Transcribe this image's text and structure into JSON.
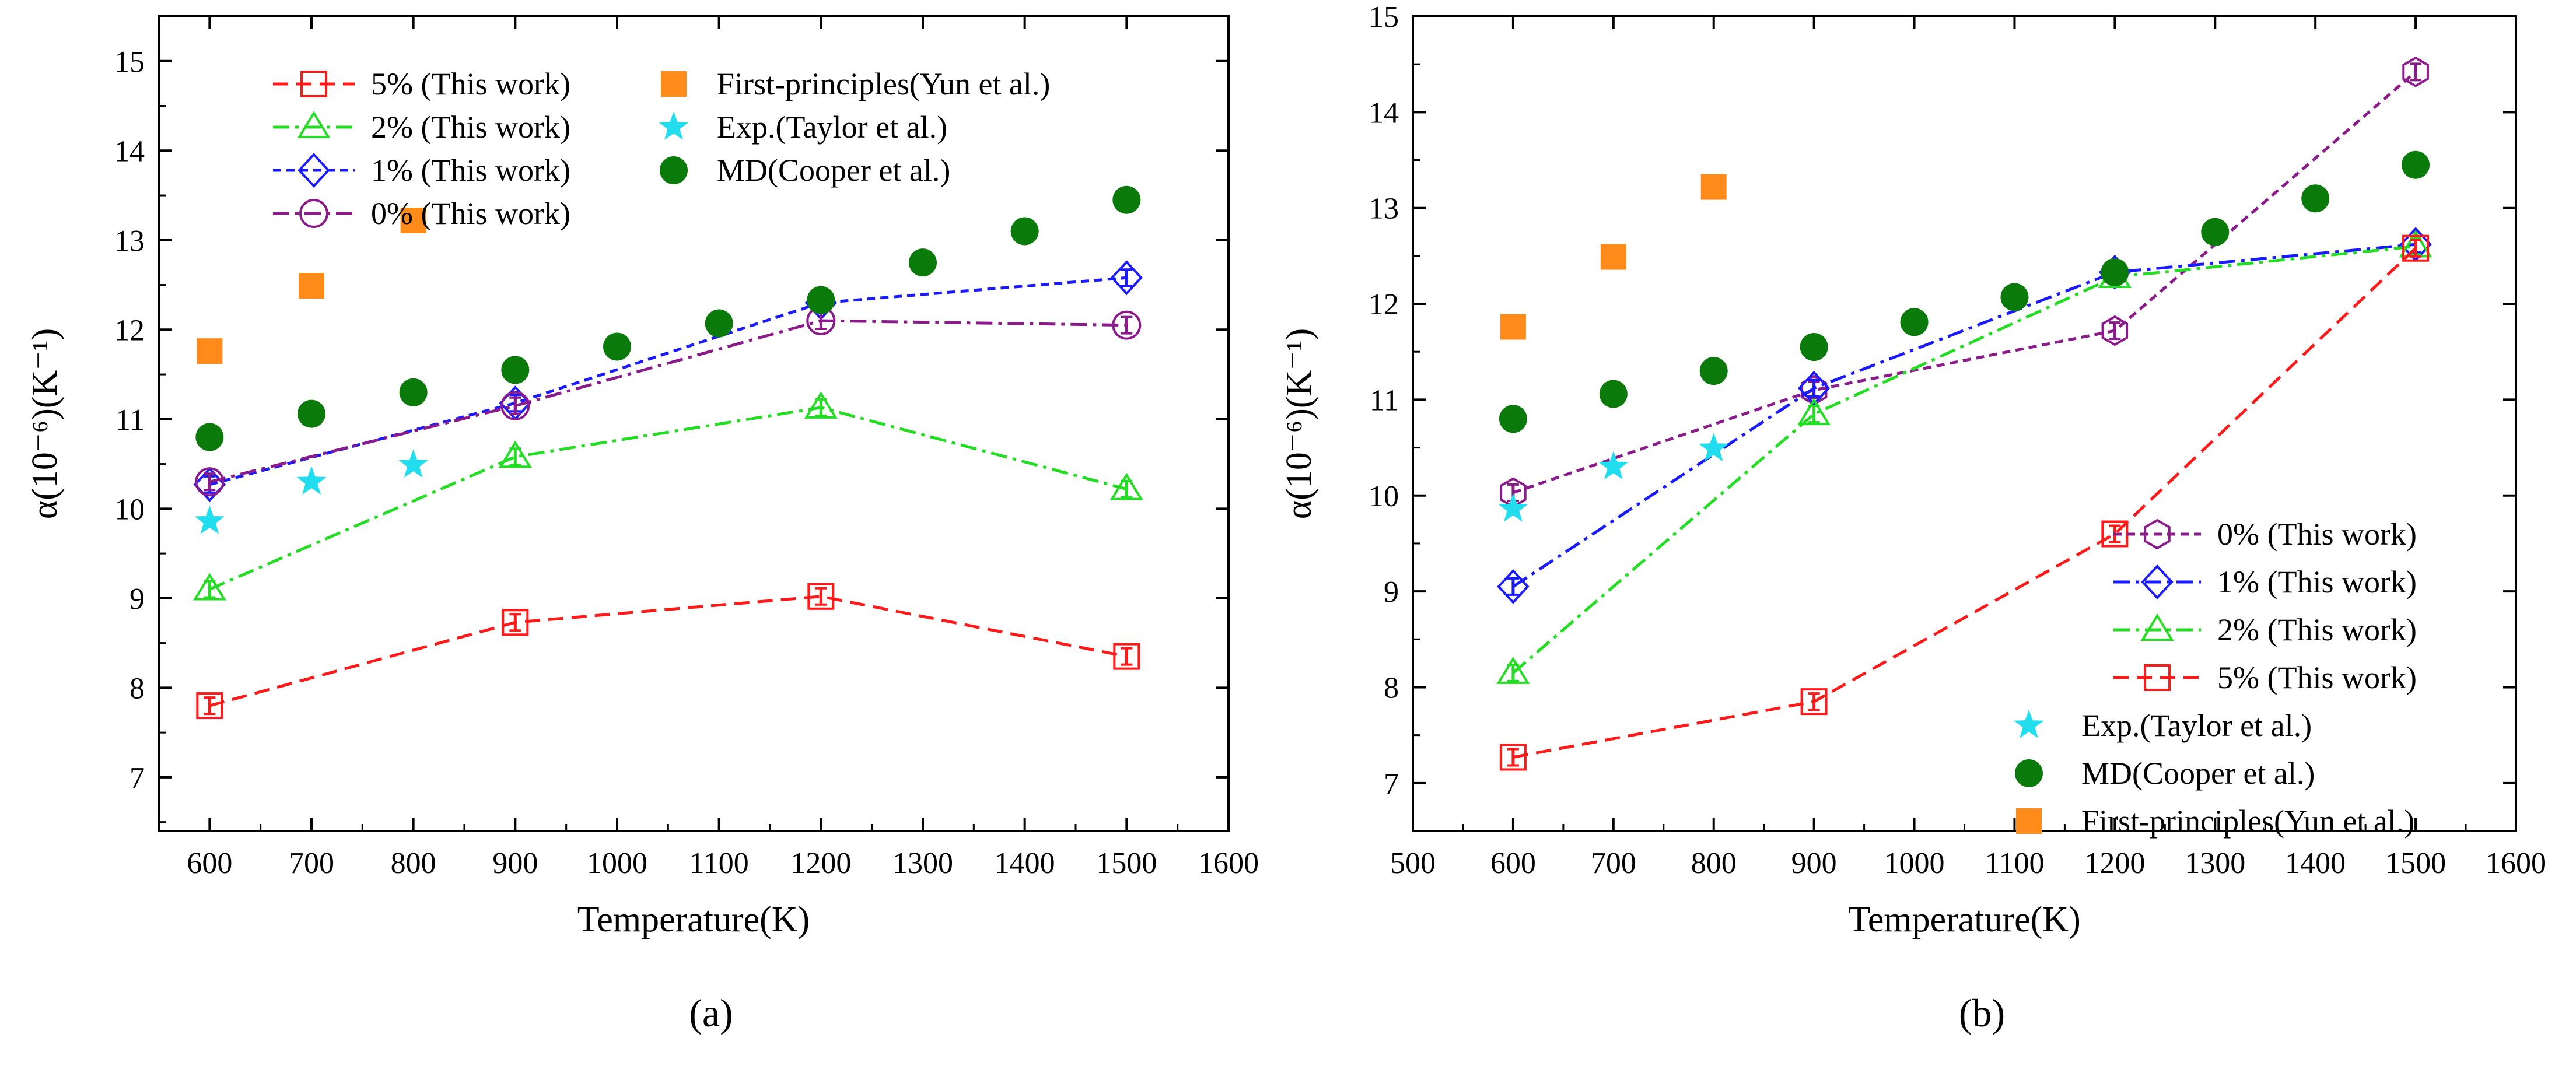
{
  "chart_data": [
    {
      "type": "line",
      "panel_label": "(a)",
      "xlabel": "Temperature(K)",
      "ylabel": "α(10⁻⁶)(K⁻¹)",
      "xlim": [
        550,
        1600
      ],
      "ylim": [
        6.4,
        15.5
      ],
      "xticks": [
        600,
        700,
        800,
        900,
        1000,
        1100,
        1200,
        1300,
        1400,
        1500,
        1600
      ],
      "yticks": [
        7,
        8,
        9,
        10,
        11,
        12,
        13,
        14,
        15
      ],
      "legend_placement": "top",
      "series": [
        {
          "name": "5% (This work)",
          "color": "#ff1a1a",
          "marker": "square-open",
          "dash": "dash",
          "error_bars": true,
          "x": [
            600,
            900,
            1200,
            1500
          ],
          "y": [
            7.8,
            8.73,
            9.02,
            8.35
          ]
        },
        {
          "name": "2% (This work)",
          "color": "#22dd22",
          "marker": "triangle-open",
          "dash": "dashdot",
          "error_bars": true,
          "x": [
            600,
            900,
            1200,
            1500
          ],
          "y": [
            9.1,
            10.58,
            11.13,
            10.22
          ]
        },
        {
          "name": "1% (This work)",
          "color": "#1a1aff",
          "marker": "diamond-open",
          "dash": "short-dash",
          "error_bars": true,
          "x": [
            600,
            900,
            1200,
            1500
          ],
          "y": [
            10.27,
            11.18,
            12.3,
            12.58
          ]
        },
        {
          "name": "0% (This work)",
          "color": "#8b1a8b",
          "marker": "circle-open",
          "dash": "dashdot",
          "error_bars": true,
          "x": [
            600,
            900,
            1200,
            1500
          ],
          "y": [
            10.3,
            11.15,
            12.1,
            12.05
          ]
        },
        {
          "name": "First-principles(Yun et al.)",
          "color": "#ff8c1a",
          "marker": "square-filled",
          "dash": "none",
          "x": [
            600,
            700,
            800
          ],
          "y": [
            11.76,
            12.49,
            13.22
          ]
        },
        {
          "name": "Exp.(Taylor et al.)",
          "color": "#22ddee",
          "marker": "star-filled",
          "dash": "none",
          "x": [
            600,
            700,
            800
          ],
          "y": [
            9.86,
            10.3,
            10.49
          ]
        },
        {
          "name": "MD(Cooper et al.)",
          "color": "#0a7a0a",
          "marker": "circle-filled",
          "dash": "none",
          "x": [
            600,
            700,
            800,
            900,
            1000,
            1100,
            1200,
            1300,
            1400,
            1500
          ],
          "y": [
            10.8,
            11.06,
            11.3,
            11.55,
            11.81,
            12.07,
            12.33,
            12.75,
            13.1,
            13.45
          ]
        }
      ],
      "legend_left": [
        "5% (This work)",
        "2% (This work)",
        "1% (This work)",
        "0% (This work)"
      ],
      "legend_right": [
        "First-principles(Yun et al.)",
        "Exp.(Taylor et al.)",
        "MD(Cooper et al.)"
      ]
    },
    {
      "type": "line",
      "panel_label": "(b)",
      "xlabel": "Temperature(K)",
      "ylabel": "α(10⁻⁶)(K⁻¹)",
      "xlim": [
        500,
        1600
      ],
      "ylim": [
        6.5,
        15
      ],
      "xticks": [
        500,
        600,
        700,
        800,
        900,
        1000,
        1100,
        1200,
        1300,
        1400,
        1500,
        1600
      ],
      "yticks": [
        7,
        8,
        9,
        10,
        11,
        12,
        13,
        14,
        15
      ],
      "legend_placement": "bottom-right",
      "series": [
        {
          "name": "0% (This work)",
          "color": "#8b1a8b",
          "marker": "hexagon-open",
          "dash": "short-dash",
          "error_bars": true,
          "x": [
            600,
            900,
            1200,
            1500
          ],
          "y": [
            10.03,
            11.1,
            11.72,
            14.42
          ]
        },
        {
          "name": "1% (This work)",
          "color": "#1a1aff",
          "marker": "diamond-open",
          "dash": "dashdot",
          "error_bars": true,
          "x": [
            600,
            900,
            1200,
            1500
          ],
          "y": [
            9.05,
            11.12,
            12.33,
            12.62
          ]
        },
        {
          "name": "2% (This work)",
          "color": "#22dd22",
          "marker": "triangle-open",
          "dash": "dashdot",
          "error_bars": true,
          "x": [
            600,
            900,
            1200,
            1500
          ],
          "y": [
            8.15,
            10.85,
            12.28,
            12.6
          ]
        },
        {
          "name": "5% (This work)",
          "color": "#ff1a1a",
          "marker": "square-open",
          "dash": "dash",
          "error_bars": true,
          "x": [
            600,
            900,
            1200,
            1500
          ],
          "y": [
            7.27,
            7.85,
            9.6,
            12.58
          ]
        },
        {
          "name": "Exp.(Taylor et al.)",
          "color": "#22ddee",
          "marker": "star-filled",
          "dash": "none",
          "x": [
            600,
            700,
            800
          ],
          "y": [
            9.86,
            10.3,
            10.49
          ]
        },
        {
          "name": "MD(Cooper et al.)",
          "color": "#0a7a0a",
          "marker": "circle-filled",
          "dash": "none",
          "x": [
            600,
            700,
            800,
            900,
            1000,
            1100,
            1200,
            1300,
            1400,
            1500
          ],
          "y": [
            10.8,
            11.06,
            11.3,
            11.55,
            11.81,
            12.07,
            12.33,
            12.75,
            13.1,
            13.45
          ]
        },
        {
          "name": "First-principles(Yun et al.)",
          "color": "#ff8c1a",
          "marker": "square-filled",
          "dash": "none",
          "x": [
            600,
            700,
            800
          ],
          "y": [
            11.76,
            12.49,
            13.22
          ]
        }
      ],
      "legend_order": [
        "0% (This work)",
        "1% (This work)",
        "2% (This work)",
        "5% (This work)",
        "Exp.(Taylor et al.)",
        "MD(Cooper et al.)",
        "First-principles(Yun et al.)"
      ]
    }
  ]
}
